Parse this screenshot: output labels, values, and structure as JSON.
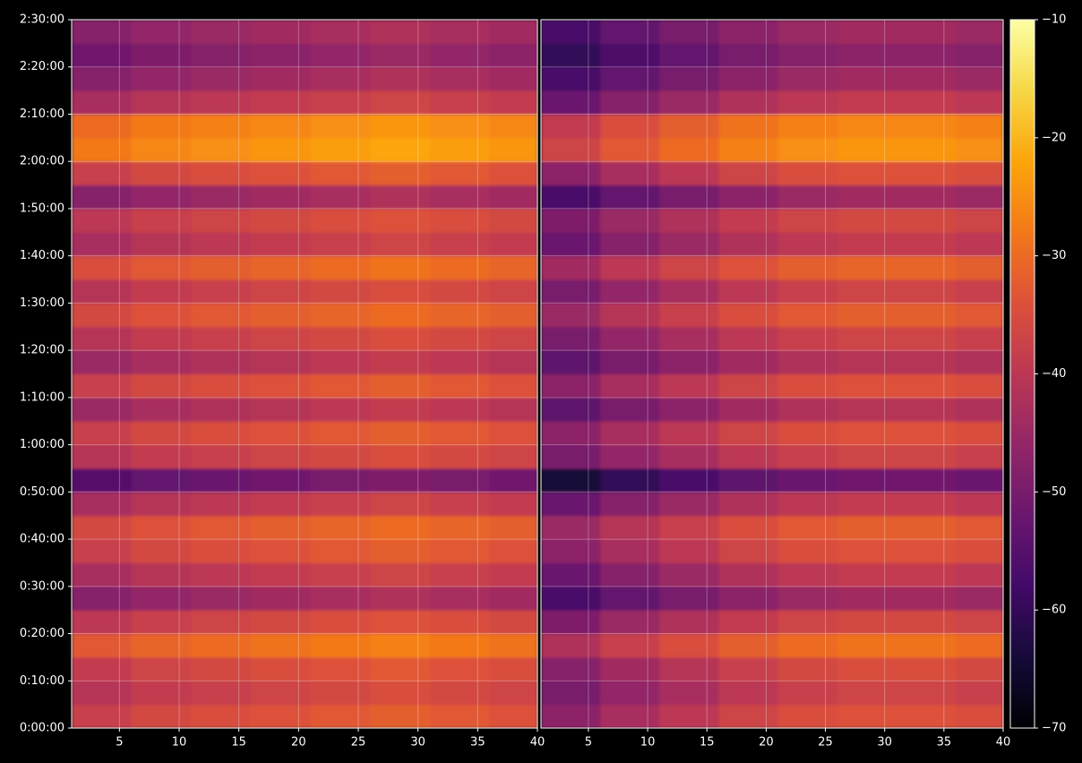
{
  "chart_data": [
    {
      "type": "heatmap",
      "colormap": "inferno",
      "clim": [
        -70,
        -10
      ],
      "grid": true,
      "xlim": [
        1,
        40
      ],
      "ylim": [
        0,
        9000
      ],
      "xticks": [
        5,
        10,
        15,
        20,
        25,
        30,
        35,
        40
      ],
      "yticks": [
        {
          "value": 0,
          "label": "0:00:00"
        },
        {
          "value": 600,
          "label": "0:10:00"
        },
        {
          "value": 1200,
          "label": "0:20:00"
        },
        {
          "value": 1800,
          "label": "0:30:00"
        },
        {
          "value": 2400,
          "label": "0:40:00"
        },
        {
          "value": 3000,
          "label": "0:50:00"
        },
        {
          "value": 3600,
          "label": "1:00:00"
        },
        {
          "value": 4200,
          "label": "1:10:00"
        },
        {
          "value": 4800,
          "label": "1:20:00"
        },
        {
          "value": 5400,
          "label": "1:30:00"
        },
        {
          "value": 6000,
          "label": "1:40:00"
        },
        {
          "value": 6600,
          "label": "1:50:00"
        },
        {
          "value": 7200,
          "label": "2:00:00"
        },
        {
          "value": 7800,
          "label": "2:10:00"
        },
        {
          "value": 8400,
          "label": "2:20:00"
        },
        {
          "value": 9000,
          "label": "2:30:00"
        }
      ],
      "xbins": [
        1,
        6,
        11,
        16,
        21,
        26,
        31,
        36,
        40
      ],
      "ybins": [
        0,
        300,
        600,
        900,
        1200,
        1500,
        1800,
        2100,
        2400,
        2700,
        3000,
        3300,
        3600,
        3900,
        4200,
        4500,
        4800,
        5100,
        5400,
        5700,
        6000,
        6300,
        6600,
        6900,
        7200,
        7500,
        7800,
        8100,
        8400,
        8700,
        9000
      ],
      "values": [
        [
          -38,
          -36,
          -35,
          -34,
          -33,
          -32,
          -33,
          -34
        ],
        [
          -41,
          -39,
          -38,
          -37,
          -36,
          -35,
          -36,
          -37
        ],
        [
          -39,
          -37,
          -36,
          -35,
          -34,
          -33,
          -34,
          -35
        ],
        [
          -33,
          -31,
          -30,
          -29,
          -28,
          -27,
          -28,
          -29
        ],
        [
          -40,
          -38,
          -37,
          -36,
          -35,
          -34,
          -35,
          -36
        ],
        [
          -48,
          -46,
          -45,
          -44,
          -43,
          -42,
          -43,
          -44
        ],
        [
          -43,
          -41,
          -40,
          -39,
          -38,
          -37,
          -38,
          -39
        ],
        [
          -38,
          -36,
          -35,
          -34,
          -33,
          -32,
          -33,
          -34
        ],
        [
          -36,
          -34,
          -33,
          -32,
          -31,
          -30,
          -31,
          -32
        ],
        [
          -43,
          -41,
          -40,
          -39,
          -38,
          -37,
          -38,
          -39
        ],
        [
          -55,
          -53,
          -52,
          -51,
          -50,
          -49,
          -50,
          -51
        ],
        [
          -41,
          -39,
          -38,
          -37,
          -36,
          -35,
          -36,
          -37
        ],
        [
          -38,
          -36,
          -35,
          -34,
          -33,
          -32,
          -33,
          -34
        ],
        [
          -45,
          -43,
          -42,
          -41,
          -40,
          -39,
          -40,
          -41
        ],
        [
          -38,
          -36,
          -35,
          -34,
          -33,
          -32,
          -33,
          -34
        ],
        [
          -45,
          -43,
          -42,
          -41,
          -40,
          -39,
          -40,
          -41
        ],
        [
          -41,
          -39,
          -38,
          -37,
          -36,
          -35,
          -36,
          -37
        ],
        [
          -36,
          -34,
          -33,
          -32,
          -31,
          -30,
          -31,
          -32
        ],
        [
          -41,
          -39,
          -38,
          -37,
          -36,
          -35,
          -36,
          -37
        ],
        [
          -35,
          -33,
          -32,
          -31,
          -30,
          -29,
          -30,
          -31
        ],
        [
          -43,
          -41,
          -40,
          -39,
          -38,
          -37,
          -38,
          -39
        ],
        [
          -40,
          -38,
          -37,
          -36,
          -35,
          -34,
          -35,
          -36
        ],
        [
          -48,
          -46,
          -45,
          -44,
          -43,
          -42,
          -43,
          -44
        ],
        [
          -38,
          -36,
          -35,
          -34,
          -33,
          -32,
          -33,
          -34
        ],
        [
          -28,
          -26,
          -25,
          -24,
          -23,
          -22,
          -23,
          -24
        ],
        [
          -30,
          -28,
          -27,
          -26,
          -25,
          -24,
          -25,
          -26
        ],
        [
          -43,
          -41,
          -40,
          -39,
          -38,
          -37,
          -38,
          -39
        ],
        [
          -48,
          -46,
          -45,
          -44,
          -43,
          -42,
          -43,
          -44
        ],
        [
          -51,
          -49,
          -48,
          -47,
          -46,
          -45,
          -46,
          -47
        ],
        [
          -48,
          -46,
          -45,
          -44,
          -43,
          -42,
          -43,
          -44
        ]
      ]
    },
    {
      "type": "heatmap",
      "colormap": "inferno",
      "clim": [
        -70,
        -10
      ],
      "grid": true,
      "xlim": [
        1,
        40
      ],
      "ylim": [
        0,
        9000
      ],
      "xticks": [
        5,
        10,
        15,
        20,
        25,
        30,
        35,
        40
      ],
      "colorbar_ticks": [
        {
          "value": -70,
          "label": "−70"
        },
        {
          "value": -60,
          "label": "−60"
        },
        {
          "value": -50,
          "label": "−50"
        },
        {
          "value": -40,
          "label": "−40"
        },
        {
          "value": -30,
          "label": "−30"
        },
        {
          "value": -20,
          "label": "−20"
        },
        {
          "value": -10,
          "label": "−10"
        }
      ],
      "xbins": [
        1,
        6,
        11,
        16,
        21,
        26,
        31,
        36,
        40
      ],
      "ybins": [
        0,
        300,
        600,
        900,
        1200,
        1500,
        1800,
        2100,
        2400,
        2700,
        3000,
        3300,
        3600,
        3900,
        4200,
        4500,
        4800,
        5100,
        5400,
        5700,
        6000,
        6300,
        6600,
        6900,
        7200,
        7500,
        7800,
        8100,
        8400,
        8700,
        9000
      ],
      "values": [
        [
          -47,
          -43,
          -40,
          -37,
          -35,
          -34,
          -34,
          -35
        ],
        [
          -50,
          -46,
          -43,
          -40,
          -38,
          -37,
          -37,
          -38
        ],
        [
          -48,
          -44,
          -41,
          -38,
          -36,
          -35,
          -35,
          -36
        ],
        [
          -42,
          -38,
          -35,
          -32,
          -30,
          -29,
          -29,
          -30
        ],
        [
          -49,
          -45,
          -42,
          -39,
          -37,
          -36,
          -36,
          -37
        ],
        [
          -57,
          -53,
          -50,
          -47,
          -45,
          -44,
          -44,
          -45
        ],
        [
          -52,
          -48,
          -45,
          -42,
          -40,
          -39,
          -39,
          -40
        ],
        [
          -47,
          -43,
          -40,
          -37,
          -35,
          -34,
          -34,
          -35
        ],
        [
          -45,
          -41,
          -38,
          -35,
          -33,
          -32,
          -32,
          -33
        ],
        [
          -52,
          -48,
          -45,
          -42,
          -40,
          -39,
          -39,
          -40
        ],
        [
          -64,
          -60,
          -57,
          -54,
          -52,
          -51,
          -51,
          -52
        ],
        [
          -50,
          -46,
          -43,
          -40,
          -38,
          -37,
          -37,
          -38
        ],
        [
          -47,
          -43,
          -40,
          -37,
          -35,
          -34,
          -34,
          -35
        ],
        [
          -54,
          -50,
          -47,
          -44,
          -42,
          -41,
          -41,
          -42
        ],
        [
          -47,
          -43,
          -40,
          -37,
          -35,
          -34,
          -34,
          -35
        ],
        [
          -54,
          -50,
          -47,
          -44,
          -42,
          -41,
          -41,
          -42
        ],
        [
          -50,
          -46,
          -43,
          -40,
          -38,
          -37,
          -37,
          -38
        ],
        [
          -45,
          -41,
          -38,
          -35,
          -33,
          -32,
          -32,
          -33
        ],
        [
          -50,
          -46,
          -43,
          -40,
          -38,
          -37,
          -37,
          -38
        ],
        [
          -44,
          -40,
          -37,
          -34,
          -32,
          -31,
          -31,
          -32
        ],
        [
          -52,
          -48,
          -45,
          -42,
          -40,
          -39,
          -39,
          -40
        ],
        [
          -49,
          -45,
          -42,
          -39,
          -37,
          -36,
          -36,
          -37
        ],
        [
          -57,
          -53,
          -50,
          -47,
          -45,
          -44,
          -44,
          -45
        ],
        [
          -47,
          -43,
          -40,
          -37,
          -35,
          -34,
          -34,
          -35
        ],
        [
          -37,
          -33,
          -30,
          -27,
          -25,
          -24,
          -24,
          -25
        ],
        [
          -39,
          -35,
          -32,
          -29,
          -27,
          -26,
          -26,
          -27
        ],
        [
          -52,
          -48,
          -45,
          -42,
          -40,
          -39,
          -39,
          -40
        ],
        [
          -57,
          -53,
          -50,
          -47,
          -45,
          -44,
          -44,
          -45
        ],
        [
          -60,
          -56,
          -53,
          -50,
          -48,
          -47,
          -47,
          -48
        ],
        [
          -57,
          -53,
          -50,
          -47,
          -45,
          -44,
          -44,
          -45
        ]
      ]
    }
  ]
}
